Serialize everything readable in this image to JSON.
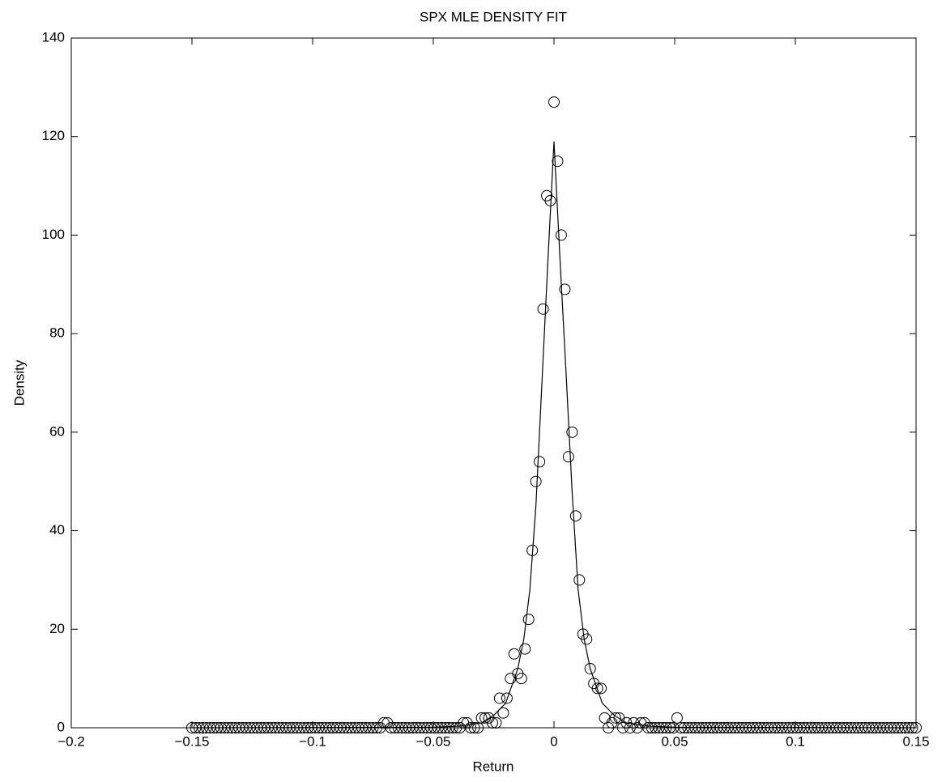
{
  "chart_data": {
    "type": "scatter",
    "title": "SPX MLE DENSITY FIT",
    "x_label": "Return",
    "y_label": "Density",
    "xlim": [
      -0.2,
      0.15
    ],
    "ylim": [
      0,
      140
    ],
    "xticks": [
      {
        "value": -0.2,
        "label": "−0.2"
      },
      {
        "value": -0.15,
        "label": "−0.15"
      },
      {
        "value": -0.1,
        "label": "−0.1"
      },
      {
        "value": -0.05,
        "label": "−0.05"
      },
      0,
      0.05,
      0.1,
      0.15
    ],
    "yticks": [
      0,
      20,
      40,
      60,
      80,
      100,
      120,
      140
    ],
    "grid": false,
    "series": [
      {
        "style": "circle",
        "color": "#000000",
        "x": [
          -0.15,
          -0.1485,
          -0.147,
          -0.1455,
          -0.144,
          -0.1425,
          -0.141,
          -0.1395,
          -0.138,
          -0.1365,
          -0.135,
          -0.1335,
          -0.132,
          -0.1305,
          -0.129,
          -0.1275,
          -0.126,
          -0.1245,
          -0.123,
          -0.1215,
          -0.12,
          -0.1185,
          -0.117,
          -0.1155,
          -0.114,
          -0.1125,
          -0.111,
          -0.1095,
          -0.108,
          -0.1065,
          -0.105,
          -0.1035,
          -0.102,
          -0.1005,
          -0.099,
          -0.0975,
          -0.096,
          -0.0945,
          -0.093,
          -0.0915,
          -0.09,
          -0.0885,
          -0.087,
          -0.0855,
          -0.084,
          -0.0825,
          -0.081,
          -0.0795,
          -0.078,
          -0.0765,
          -0.075,
          -0.0735,
          -0.072,
          -0.0705,
          -0.069,
          -0.0675,
          -0.066,
          -0.0645,
          -0.063,
          -0.0615,
          -0.06,
          -0.0585,
          -0.057,
          -0.0555,
          -0.054,
          -0.0525,
          -0.051,
          -0.0495,
          -0.048,
          -0.0465,
          -0.045,
          -0.0435,
          -0.042,
          -0.0405,
          -0.039,
          -0.0375,
          -0.036,
          -0.0345,
          -0.033,
          -0.0315,
          -0.03,
          -0.0285,
          -0.027,
          -0.0255,
          -0.024,
          -0.0225,
          -0.021,
          -0.0195,
          -0.018,
          -0.0165,
          -0.015,
          -0.0135,
          -0.012,
          -0.0105,
          -0.009,
          -0.0075,
          -0.006,
          -0.0045,
          -0.003,
          -0.0015,
          0,
          0.0015,
          0.003,
          0.0045,
          0.006,
          0.0075,
          0.009,
          0.0105,
          0.012,
          0.0135,
          0.015,
          0.0165,
          0.018,
          0.0195,
          0.021,
          0.0225,
          0.024,
          0.0255,
          0.027,
          0.0285,
          0.03,
          0.0315,
          0.033,
          0.0345,
          0.036,
          0.0375,
          0.039,
          0.0405,
          0.042,
          0.0435,
          0.045,
          0.0465,
          0.048,
          0.0495,
          0.051,
          0.0525,
          0.054,
          0.0555,
          0.057,
          0.0585,
          0.06,
          0.0615,
          0.063,
          0.0645,
          0.066,
          0.0675,
          0.069,
          0.0705,
          0.072,
          0.0735,
          0.075,
          0.0765,
          0.078,
          0.0795,
          0.081,
          0.0825,
          0.084,
          0.0855,
          0.087,
          0.0885,
          0.09,
          0.0915,
          0.093,
          0.0945,
          0.096,
          0.0975,
          0.099,
          0.1005,
          0.102,
          0.1035,
          0.105,
          0.1065,
          0.108,
          0.1095,
          0.111,
          0.1125,
          0.114,
          0.1155,
          0.117,
          0.1185,
          0.12,
          0.1215,
          0.123,
          0.1245,
          0.126,
          0.1275,
          0.129,
          0.1305,
          0.132,
          0.1335,
          0.135,
          0.1365,
          0.138,
          0.1395,
          0.141,
          0.1425,
          0.144,
          0.1455,
          0.147,
          0.1485,
          0.15
        ],
        "values": [
          0,
          0,
          0,
          0,
          0,
          0,
          0,
          0,
          0,
          0,
          0,
          0,
          0,
          0,
          0,
          0,
          0,
          0,
          0,
          0,
          0,
          0,
          0,
          0,
          0,
          0,
          0,
          0,
          0,
          0,
          0,
          0,
          0,
          0,
          0,
          0,
          0,
          0,
          0,
          0,
          0,
          0,
          0,
          0,
          0,
          0,
          0,
          0,
          0,
          0,
          0,
          0,
          0,
          1,
          1,
          0,
          0,
          0,
          0,
          0,
          0,
          0,
          0,
          0,
          0,
          0,
          0,
          0,
          0,
          0,
          0,
          0,
          0,
          0,
          0,
          1,
          1,
          0,
          0,
          0,
          2,
          2,
          2,
          1,
          1,
          6,
          3,
          6,
          10,
          15,
          11,
          10,
          16,
          22,
          36,
          50,
          54,
          85,
          108,
          107,
          127,
          115,
          100,
          89,
          55,
          60,
          43,
          30,
          19,
          18,
          12,
          9,
          8,
          8,
          2,
          0,
          1,
          2,
          2,
          0,
          1,
          0,
          1,
          0,
          1,
          1,
          0,
          0,
          0,
          0,
          0,
          0,
          0,
          0,
          2,
          0,
          0,
          0,
          0,
          0,
          0,
          0,
          0,
          0,
          0,
          0,
          0,
          0,
          0,
          0,
          0,
          0,
          0,
          0,
          0,
          0,
          0,
          0,
          0,
          0,
          0,
          0,
          0,
          0,
          0,
          0,
          0,
          0,
          0,
          0,
          0,
          0,
          0,
          0,
          0,
          0,
          0,
          0,
          0,
          0,
          0,
          0,
          0,
          0,
          0,
          0,
          0,
          0,
          0,
          0,
          0,
          0,
          0,
          0,
          0,
          0,
          0,
          0,
          0,
          0,
          0
        ]
      },
      {
        "style": "line",
        "color": "#000000",
        "x": [
          -0.15,
          -0.05,
          -0.04,
          -0.03,
          -0.025,
          -0.02,
          -0.015,
          -0.0125,
          -0.01,
          -0.0075,
          -0.005,
          -0.0025,
          0,
          0.0025,
          0.005,
          0.0075,
          0.01,
          0.0125,
          0.015,
          0.02,
          0.025,
          0.03,
          0.04,
          0.05,
          0.15
        ],
        "values": [
          0,
          0.1,
          0.3,
          1,
          2.5,
          5,
          12,
          18,
          28,
          45,
          70,
          95,
          119,
          95,
          72,
          48,
          28,
          18,
          12,
          5,
          2.5,
          1,
          0.3,
          0.1,
          0
        ]
      }
    ]
  }
}
